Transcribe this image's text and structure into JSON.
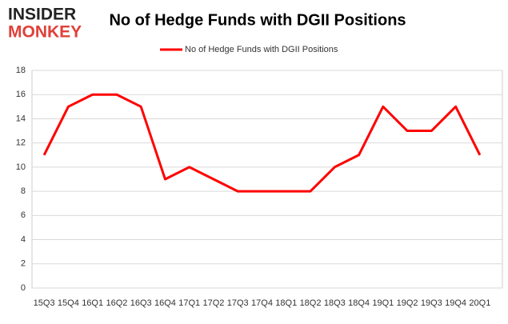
{
  "logo": {
    "line1": "INSIDER",
    "line2": "MONKEY"
  },
  "chart_data": {
    "type": "line",
    "title": "No of Hedge Funds with DGII Positions",
    "categories": [
      "15Q3",
      "15Q4",
      "16Q1",
      "16Q2",
      "16Q3",
      "16Q4",
      "17Q1",
      "17Q2",
      "17Q3",
      "17Q4",
      "18Q1",
      "18Q2",
      "18Q3",
      "18Q4",
      "19Q1",
      "19Q2",
      "19Q3",
      "19Q4",
      "20Q1"
    ],
    "series": [
      {
        "name": "No of Hedge Funds with DGII Positions",
        "color": "#ff0000",
        "values": [
          11,
          15,
          16,
          16,
          15,
          9,
          10,
          9,
          8,
          8,
          8,
          8,
          10,
          11,
          15,
          13,
          13,
          15,
          11
        ]
      }
    ],
    "ylim": [
      0,
      18
    ],
    "yticks": [
      0,
      2,
      4,
      6,
      8,
      10,
      12,
      14,
      16,
      18
    ],
    "grid": true,
    "legend": "top"
  }
}
